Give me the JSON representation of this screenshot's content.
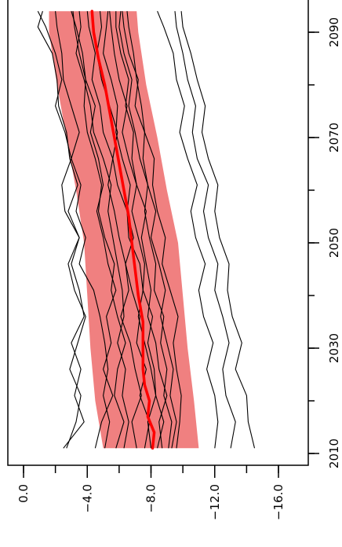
{
  "chart_data": {
    "type": "line",
    "orientation": "rotated",
    "x_axis": {
      "label": "",
      "ticks": [
        2010,
        2030,
        2050,
        2070,
        2090
      ],
      "tick_labels": [
        "2010",
        "2030",
        "2050",
        "2070",
        "2090"
      ],
      "minor_ticks": [
        2010,
        2020,
        2030,
        2040,
        2050,
        2060,
        2070,
        2080,
        2090
      ],
      "range": [
        2008,
        2095
      ]
    },
    "y_axis": {
      "label": "",
      "ticks": [
        0,
        -4,
        -8,
        -12,
        -16
      ],
      "tick_labels": [
        "0.0",
        "-4.0",
        "-8.0",
        "-12.0",
        "-16.0"
      ],
      "minor_ticks": [
        0,
        -2,
        -4,
        -6,
        -8,
        -10,
        -12,
        -14,
        -16
      ],
      "range": [
        1,
        -17
      ]
    },
    "band": {
      "color": "#f08080",
      "x": [
        2011,
        2020,
        2030,
        2040,
        2050,
        2060,
        2070,
        2080,
        2090,
        2094
      ],
      "upper": [
        -5.0,
        -4.5,
        -4.2,
        -4.0,
        -3.8,
        -3.3,
        -2.7,
        -2.1,
        -1.6,
        -1.6
      ],
      "lower": [
        -11.0,
        -10.7,
        -10.3,
        -10.0,
        -9.7,
        -9.0,
        -8.4,
        -7.7,
        -7.2,
        -7.1
      ]
    },
    "mean_line": {
      "color": "#ff0000",
      "x": [
        2011,
        2014,
        2017,
        2020,
        2023,
        2026,
        2030,
        2035,
        2040,
        2045,
        2050,
        2055,
        2060,
        2065,
        2070,
        2075,
        2080,
        2085,
        2090,
        2094
      ],
      "y": [
        -8.1,
        -8.2,
        -7.8,
        -7.9,
        -7.6,
        -7.5,
        -7.5,
        -7.5,
        -7.2,
        -7.0,
        -6.8,
        -6.6,
        -6.3,
        -6.0,
        -5.7,
        -5.4,
        -5.1,
        -4.7,
        -4.4,
        -4.3
      ]
    },
    "series_x": [
      2011,
      2016,
      2021,
      2026,
      2031,
      2036,
      2041,
      2046,
      2051,
      2056,
      2061,
      2066,
      2071,
      2076,
      2081,
      2086,
      2091,
      2094
    ],
    "series": [
      {
        "values": [
          -2.5,
          -3.8,
          -3.2,
          -3.6,
          -3.0,
          -3.8,
          -3.5,
          -3.0,
          -3.5,
          -2.8,
          -3.4,
          -2.9,
          -2.7,
          -2.2,
          -2.1,
          -1.8,
          -0.9,
          -1.2
        ]
      },
      {
        "values": [
          -5.1,
          -5.4,
          -5.0,
          -5.3,
          -5.1,
          -4.8,
          -4.4,
          -3.5,
          -3.9,
          -3.3,
          -3.6,
          -3.0,
          -3.5,
          -3.0,
          -2.5,
          -2.4,
          -2.1,
          -2.0
        ]
      },
      {
        "values": [
          -5.8,
          -6.3,
          -5.7,
          -5.9,
          -6.4,
          -5.9,
          -5.5,
          -5.7,
          -5.1,
          -4.7,
          -4.9,
          -4.5,
          -4.0,
          -3.8,
          -3.9,
          -3.5,
          -3.2,
          -3.1
        ]
      },
      {
        "values": [
          -6.3,
          -6.6,
          -6.2,
          -6.4,
          -5.9,
          -6.3,
          -6.2,
          -5.9,
          -5.6,
          -5.3,
          -5.5,
          -5.0,
          -4.4,
          -4.2,
          -3.8,
          -3.3,
          -3.6,
          -3.5
        ]
      },
      {
        "values": [
          -7.1,
          -6.8,
          -7.4,
          -7.0,
          -6.7,
          -6.1,
          -6.6,
          -6.4,
          -6.0,
          -5.7,
          -5.3,
          -5.6,
          -5.0,
          -4.8,
          -4.3,
          -4.5,
          -4.1,
          -4.0
        ]
      },
      {
        "values": [
          -7.6,
          -7.9,
          -7.3,
          -7.7,
          -7.1,
          -7.3,
          -6.8,
          -6.4,
          -6.9,
          -6.5,
          -5.9,
          -5.6,
          -5.9,
          -5.4,
          -4.9,
          -4.6,
          -4.9,
          -4.8
        ]
      },
      {
        "values": [
          -8.0,
          -7.8,
          -8.3,
          -8.0,
          -7.6,
          -7.2,
          -7.5,
          -7.3,
          -6.6,
          -6.5,
          -6.7,
          -6.2,
          -5.8,
          -5.9,
          -5.5,
          -5.0,
          -5.2,
          -5.3
        ]
      },
      {
        "values": [
          -8.4,
          -8.8,
          -8.3,
          -8.2,
          -7.8,
          -8.1,
          -7.5,
          -7.6,
          -7.2,
          -6.8,
          -7.1,
          -6.6,
          -6.2,
          -6.5,
          -6.0,
          -5.7,
          -5.5,
          -5.4
        ]
      },
      {
        "values": [
          -8.7,
          -8.5,
          -9.0,
          -8.5,
          -8.3,
          -7.8,
          -8.0,
          -7.7,
          -7.4,
          -7.7,
          -7.1,
          -6.8,
          -6.9,
          -6.4,
          -6.6,
          -6.1,
          -5.8,
          -5.8
        ]
      },
      {
        "values": [
          -9.1,
          -9.3,
          -8.8,
          -9.0,
          -8.6,
          -8.8,
          -8.2,
          -8.3,
          -7.9,
          -7.6,
          -7.8,
          -7.3,
          -7.0,
          -6.6,
          -6.8,
          -6.3,
          -6.0,
          -6.1
        ]
      },
      {
        "values": [
          -9.3,
          -9.6,
          -9.2,
          -9.4,
          -9.0,
          -8.6,
          -8.9,
          -8.5,
          -8.0,
          -8.3,
          -7.8,
          -7.5,
          -7.6,
          -7.0,
          -7.2,
          -6.6,
          -6.3,
          -6.2
        ]
      },
      {
        "values": [
          -9.6,
          -9.8,
          -9.9,
          -9.6,
          -9.4,
          -9.7,
          -9.2,
          -8.7,
          -8.9,
          -8.4,
          -8.1,
          -8.2,
          -7.6,
          -7.4,
          -7.1,
          -6.9,
          -6.6,
          -6.5
        ]
      },
      {
        "values": [
          -4.5,
          -4.9,
          -5.6,
          -5.0,
          -5.5,
          -5.2,
          -5.8,
          -5.3,
          -5.0,
          -4.6,
          -5.0,
          -4.7,
          -4.2,
          -4.5,
          -3.9,
          -3.7,
          -3.3,
          -3.0
        ]
      },
      {
        "values": [
          -2.7,
          -3.3,
          -3.6,
          -2.9,
          -3.4,
          -3.9,
          -3.2,
          -2.8,
          -3.5,
          -2.6,
          -2.4,
          -3.0,
          -2.6,
          -2.0,
          -2.4,
          -2.0,
          -1.4,
          -0.9
        ]
      },
      {
        "values": [
          -12.0,
          -12.2,
          -12.0,
          -11.5,
          -11.9,
          -11.3,
          -11.0,
          -11.4,
          -10.8,
          -10.5,
          -10.9,
          -10.3,
          -9.8,
          -10.1,
          -9.6,
          -9.4,
          -8.8,
          -8.4
        ]
      },
      {
        "values": [
          -13.0,
          -13.3,
          -12.7,
          -12.5,
          -12.9,
          -12.5,
          -12.0,
          -12.2,
          -11.6,
          -11.3,
          -11.6,
          -10.9,
          -10.6,
          -10.8,
          -10.3,
          -10.0,
          -9.6,
          -9.5
        ]
      },
      {
        "values": [
          -14.5,
          -14.1,
          -14.0,
          -13.3,
          -13.7,
          -13.1,
          -12.8,
          -12.9,
          -12.3,
          -12.0,
          -12.2,
          -11.6,
          -11.2,
          -11.4,
          -10.9,
          -10.5,
          -10.0,
          -9.9
        ]
      }
    ]
  }
}
